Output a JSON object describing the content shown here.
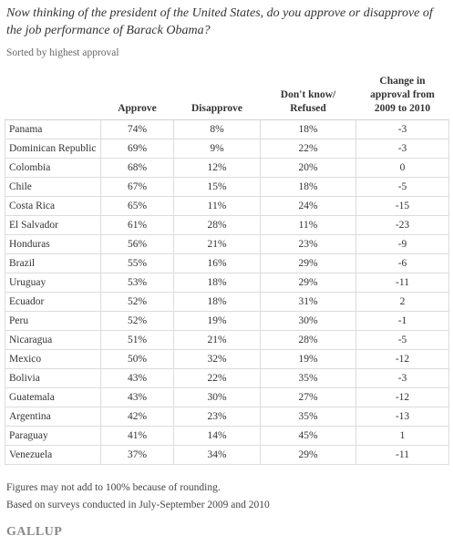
{
  "header": {
    "title": "Now thinking of the president of the United States, do you approve or disapprove of the job performance of Barack Obama?",
    "subtitle": "Sorted by highest approval"
  },
  "table": {
    "columns": [
      [
        ""
      ],
      [
        "Approve"
      ],
      [
        "Disapprove"
      ],
      [
        "Don't know/",
        "Refused"
      ],
      [
        "Change in",
        "approval from",
        "2009 to 2010"
      ]
    ],
    "rows": [
      [
        "Panama",
        "74%",
        "8%",
        "18%",
        "-3"
      ],
      [
        "Dominican Republic",
        "69%",
        "9%",
        "22%",
        "-3"
      ],
      [
        "Colombia",
        "68%",
        "12%",
        "20%",
        "0"
      ],
      [
        "Chile",
        "67%",
        "15%",
        "18%",
        "-5"
      ],
      [
        "Costa Rica",
        "65%",
        "11%",
        "24%",
        "-15"
      ],
      [
        "El Salvador",
        "61%",
        "28%",
        "11%",
        "-23"
      ],
      [
        "Honduras",
        "56%",
        "21%",
        "23%",
        "-9"
      ],
      [
        "Brazil",
        "55%",
        "16%",
        "29%",
        "-6"
      ],
      [
        "Uruguay",
        "53%",
        "18%",
        "29%",
        "-11"
      ],
      [
        "Ecuador",
        "52%",
        "18%",
        "31%",
        "2"
      ],
      [
        "Peru",
        "52%",
        "19%",
        "30%",
        "-1"
      ],
      [
        "Nicaragua",
        "51%",
        "21%",
        "28%",
        "-5"
      ],
      [
        "Mexico",
        "50%",
        "32%",
        "19%",
        "-12"
      ],
      [
        "Bolivia",
        "43%",
        "22%",
        "35%",
        "-3"
      ],
      [
        "Guatemala",
        "43%",
        "30%",
        "27%",
        "-12"
      ],
      [
        "Argentina",
        "42%",
        "23%",
        "35%",
        "-13"
      ],
      [
        "Paraguay",
        "41%",
        "14%",
        "45%",
        "1"
      ],
      [
        "Venezuela",
        "37%",
        "34%",
        "29%",
        "-11"
      ]
    ]
  },
  "footer": {
    "notes": [
      "Figures may not add to 100% because of rounding.",
      "Based on surveys conducted in July-September 2009 and 2010"
    ],
    "logo": "GALLUP"
  }
}
